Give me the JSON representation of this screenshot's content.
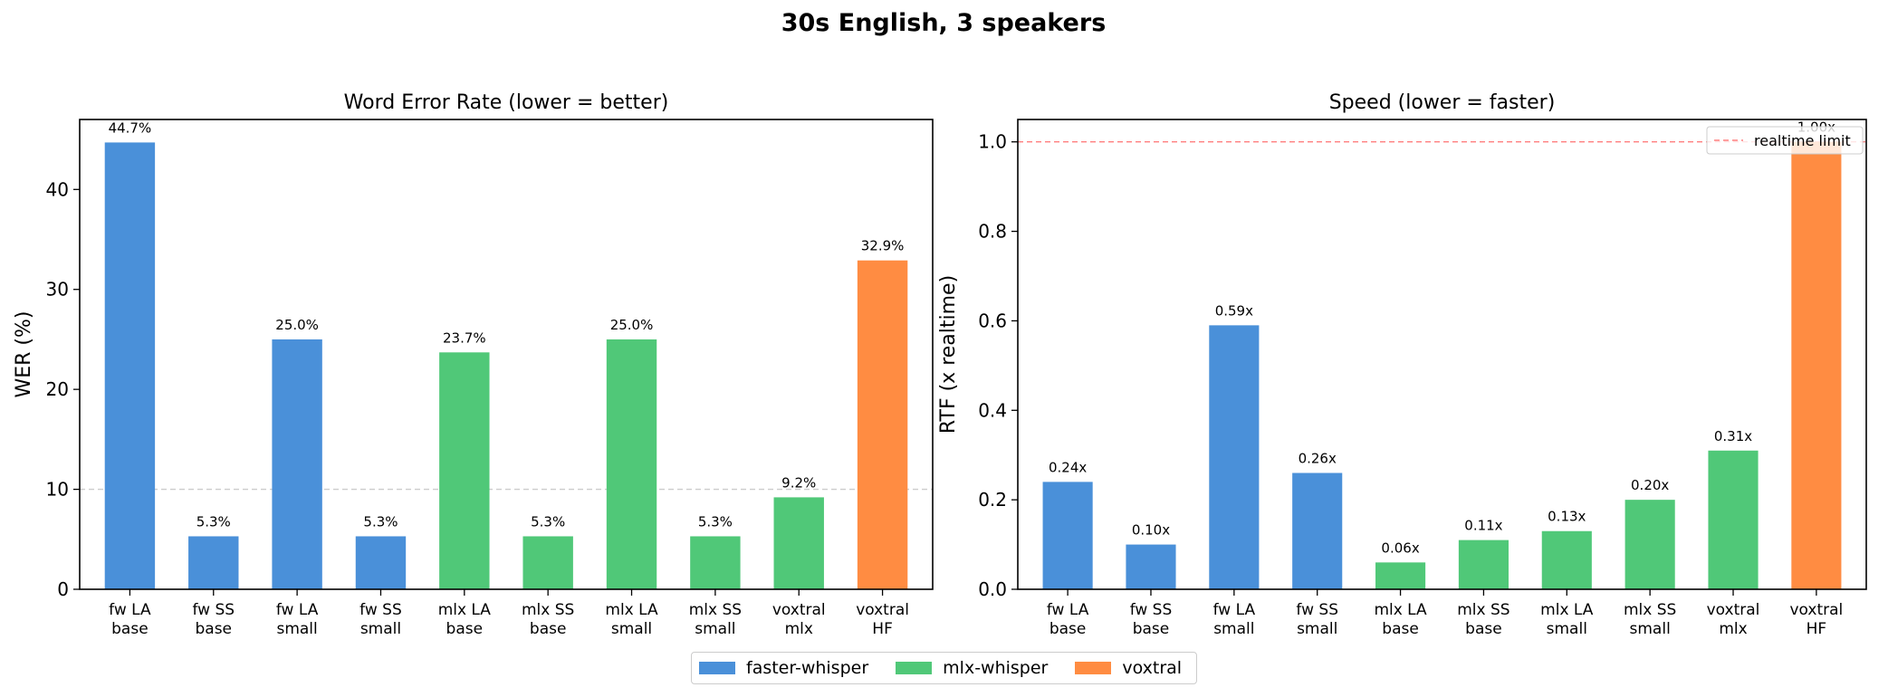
{
  "figure": {
    "suptitle": "30s English, 3 speakers"
  },
  "legend": {
    "items": [
      {
        "label": "faster-whisper",
        "color": "#4A90D9"
      },
      {
        "label": "mlx-whisper",
        "color": "#50C878"
      },
      {
        "label": "voxtral",
        "color": "#FF8C42"
      }
    ]
  },
  "chart_data": [
    {
      "type": "bar",
      "title": "Word Error Rate (lower = better)",
      "xlabel": "",
      "ylabel": "WER (%)",
      "ylim": [
        0,
        47
      ],
      "yticks": [
        "0",
        "10",
        "20",
        "30",
        "40"
      ],
      "reference_line": {
        "value": 10,
        "style": "dashed",
        "color": "#cccccc",
        "label": ""
      },
      "categories": [
        [
          "fw LA",
          "base"
        ],
        [
          "fw SS",
          "base"
        ],
        [
          "fw LA",
          "small"
        ],
        [
          "fw SS",
          "small"
        ],
        [
          "mlx LA",
          "base"
        ],
        [
          "mlx SS",
          "base"
        ],
        [
          "mlx LA",
          "small"
        ],
        [
          "mlx SS",
          "small"
        ],
        [
          "voxtral",
          "mlx"
        ],
        [
          "voxtral",
          "HF"
        ]
      ],
      "values": [
        44.7,
        5.3,
        25.0,
        5.3,
        23.7,
        5.3,
        25.0,
        5.3,
        9.2,
        32.9
      ],
      "data_labels": [
        "44.7%",
        "5.3%",
        "25.0%",
        "5.3%",
        "23.7%",
        "5.3%",
        "25.0%",
        "5.3%",
        "9.2%",
        "32.9%"
      ],
      "groups": [
        "faster-whisper",
        "faster-whisper",
        "faster-whisper",
        "faster-whisper",
        "mlx-whisper",
        "mlx-whisper",
        "mlx-whisper",
        "mlx-whisper",
        "mlx-whisper",
        "voxtral"
      ],
      "grid": false
    },
    {
      "type": "bar",
      "title": "Speed (lower = faster)",
      "xlabel": "",
      "ylabel": "RTF (x realtime)",
      "ylim": [
        0,
        1.05
      ],
      "yticks": [
        "0.0",
        "0.2",
        "0.4",
        "0.6",
        "0.8",
        "1.0"
      ],
      "reference_line": {
        "value": 1.0,
        "style": "dashed",
        "color": "#FF7F7F",
        "label": "realtime limit"
      },
      "legend_placement": "top-right",
      "categories": [
        [
          "fw LA",
          "base"
        ],
        [
          "fw SS",
          "base"
        ],
        [
          "fw LA",
          "small"
        ],
        [
          "fw SS",
          "small"
        ],
        [
          "mlx LA",
          "base"
        ],
        [
          "mlx SS",
          "base"
        ],
        [
          "mlx LA",
          "small"
        ],
        [
          "mlx SS",
          "small"
        ],
        [
          "voxtral",
          "mlx"
        ],
        [
          "voxtral",
          "HF"
        ]
      ],
      "values": [
        0.24,
        0.1,
        0.59,
        0.26,
        0.06,
        0.11,
        0.13,
        0.2,
        0.31,
        1.0
      ],
      "data_labels": [
        "0.24x",
        "0.10x",
        "0.59x",
        "0.26x",
        "0.06x",
        "0.11x",
        "0.13x",
        "0.20x",
        "0.31x",
        "1.00x"
      ],
      "groups": [
        "faster-whisper",
        "faster-whisper",
        "faster-whisper",
        "faster-whisper",
        "mlx-whisper",
        "mlx-whisper",
        "mlx-whisper",
        "mlx-whisper",
        "mlx-whisper",
        "voxtral"
      ],
      "grid": false
    }
  ]
}
